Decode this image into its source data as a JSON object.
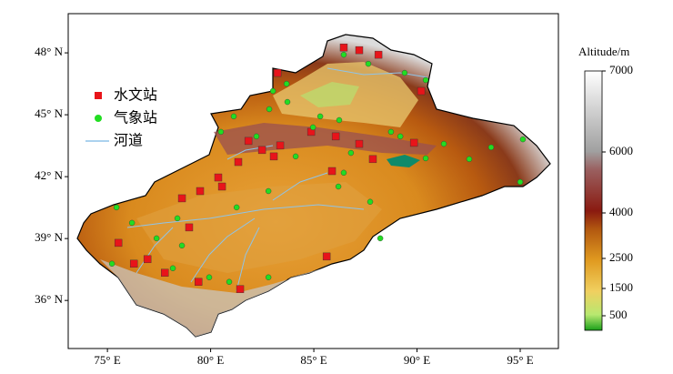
{
  "map": {
    "xlim": [
      73.1,
      96.85
    ],
    "ylim": [
      33.67,
      49.9
    ],
    "xticks": [
      {
        "value": 75,
        "label": "75° E"
      },
      {
        "value": 80,
        "label": "80° E"
      },
      {
        "value": 85,
        "label": "85° E"
      },
      {
        "value": 90,
        "label": "90° E"
      },
      {
        "value": 95,
        "label": "95° E"
      }
    ],
    "yticks": [
      {
        "value": 48,
        "label": "48° N"
      },
      {
        "value": 45,
        "label": "45° N"
      },
      {
        "value": 42,
        "label": "42° N"
      },
      {
        "value": 39,
        "label": "39° N"
      },
      {
        "value": 36,
        "label": "36° N"
      }
    ],
    "stations": [
      {
        "name": "水文站",
        "color": "#e8141a",
        "marker": "square",
        "lon": [
          86.45,
          87.2,
          88.13,
          83.24,
          90.2,
          83.37,
          81.83,
          82.49,
          83.06,
          81.34,
          84.87,
          86.06,
          87.2,
          87.86,
          85.88,
          80.37,
          80.55,
          79.49,
          78.61,
          78.96,
          75.53,
          76.94,
          76.28,
          77.78,
          79.41,
          81.43,
          85.62,
          89.85
        ],
        "lat": [
          48.26,
          48.13,
          47.91,
          47.03,
          46.15,
          43.51,
          43.73,
          43.29,
          42.98,
          42.71,
          44.17,
          43.95,
          43.59,
          42.85,
          42.27,
          41.96,
          41.52,
          41.3,
          40.95,
          39.54,
          38.79,
          38.0,
          37.78,
          37.34,
          36.9,
          36.55,
          38.13,
          43.64
        ]
      },
      {
        "name": "气象站",
        "color": "#22dd22",
        "marker": "circle",
        "lon": [
          86.45,
          87.64,
          89.4,
          90.42,
          83.02,
          83.68,
          82.84,
          85.31,
          86.23,
          81.12,
          80.5,
          84.12,
          86.8,
          89.19,
          91.3,
          93.59,
          95.13,
          95.0,
          92.53,
          90.42,
          86.45,
          87.73,
          88.22,
          86.19,
          82.8,
          81.26,
          78.39,
          76.19,
          75.44,
          77.38,
          78.17,
          79.93,
          80.9,
          82.8,
          75.22,
          78.61,
          83.72,
          88.74,
          84.96,
          82.22
        ],
        "lat": [
          47.91,
          47.47,
          47.03,
          46.68,
          46.15,
          46.5,
          45.27,
          44.92,
          44.74,
          44.92,
          44.17,
          42.98,
          43.15,
          43.95,
          43.59,
          43.42,
          43.81,
          41.74,
          42.85,
          42.89,
          42.19,
          40.78,
          39.01,
          41.52,
          41.3,
          40.51,
          39.98,
          39.76,
          40.51,
          39.01,
          37.56,
          37.12,
          36.9,
          37.12,
          37.78,
          38.66,
          45.62,
          44.17,
          44.39,
          43.95
        ]
      }
    ],
    "river_label": "河道"
  },
  "colorbar": {
    "title": "Altitude/m",
    "ticks": [
      500,
      1500,
      2500,
      4000,
      6000,
      7000
    ]
  }
}
